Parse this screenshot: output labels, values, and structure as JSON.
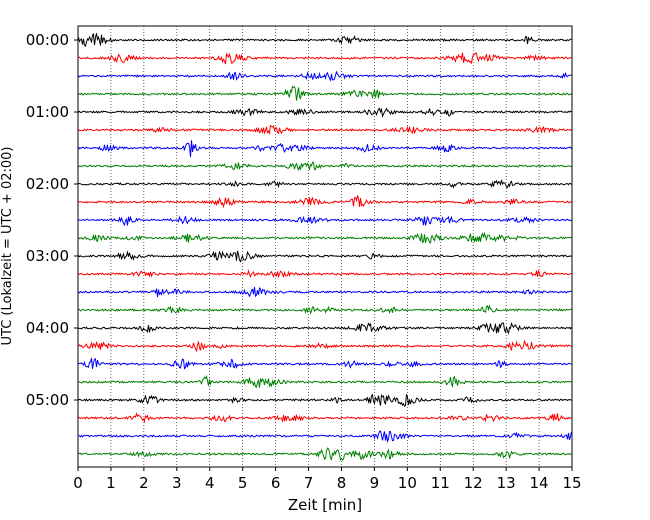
{
  "chart_data": {
    "type": "line",
    "title": "",
    "xlabel": "Zeit  [min]",
    "ylabel": "UTC (Lokalzeit = UTC + 02:00)",
    "xlim": [
      0,
      15
    ],
    "x_ticks": [
      "0",
      "1",
      "2",
      "3",
      "4",
      "5",
      "6",
      "7",
      "8",
      "9",
      "10",
      "11",
      "12",
      "13",
      "14",
      "15"
    ],
    "y_tick_labels": [
      "00:00",
      "01:00",
      "02:00",
      "03:00",
      "04:00",
      "05:00"
    ],
    "trace_interval_minutes": 15,
    "trace_start_times": [
      "00:00",
      "00:15",
      "00:30",
      "00:45",
      "01:00",
      "01:15",
      "01:30",
      "01:45",
      "02:00",
      "02:15",
      "02:30",
      "02:45",
      "03:00",
      "03:15",
      "03:30",
      "03:45",
      "04:00",
      "04:15",
      "04:30",
      "04:45",
      "05:00",
      "05:15",
      "05:30",
      "05:45"
    ],
    "trace_colors": [
      "#000000",
      "#ff0000",
      "#0000ff",
      "#008000"
    ],
    "grid": "vertical dotted at each minute"
  }
}
